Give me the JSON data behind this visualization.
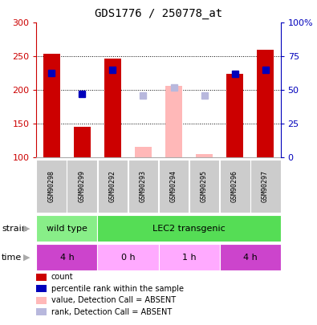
{
  "title": "GDS1776 / 250778_at",
  "samples": [
    "GSM90298",
    "GSM90299",
    "GSM90292",
    "GSM90293",
    "GSM90294",
    "GSM90295",
    "GSM90296",
    "GSM90297"
  ],
  "ylim_left": [
    100,
    300
  ],
  "ylim_right": [
    0,
    100
  ],
  "yticks_left": [
    100,
    150,
    200,
    250,
    300
  ],
  "ytick_labels_left": [
    "100",
    "150",
    "200",
    "250",
    "300"
  ],
  "yticks_right": [
    0,
    25,
    50,
    75,
    100
  ],
  "ytick_labels_right": [
    "0",
    "25",
    "50",
    "75",
    "100%"
  ],
  "counts": [
    254,
    146,
    247,
    null,
    null,
    null,
    224,
    260
  ],
  "percentile_ranks": [
    63,
    47,
    65,
    null,
    null,
    null,
    62,
    65
  ],
  "absent_values": [
    null,
    null,
    null,
    116,
    207,
    105,
    null,
    null
  ],
  "absent_ranks": [
    null,
    null,
    null,
    46,
    52,
    46,
    null,
    null
  ],
  "bar_width": 0.55,
  "count_color": "#cc0000",
  "rank_color": "#0000bb",
  "absent_count_color": "#ffb8b8",
  "absent_rank_color": "#b8b8dd",
  "grid_dotted_color": "#000000",
  "strain_groups": [
    {
      "label": "wild type",
      "start": 0,
      "end": 2,
      "color": "#88ee88"
    },
    {
      "label": "LEC2 transgenic",
      "start": 2,
      "end": 8,
      "color": "#55dd55"
    }
  ],
  "time_groups": [
    {
      "label": "4 h",
      "start": 0,
      "end": 2,
      "color": "#cc44cc"
    },
    {
      "label": "0 h",
      "start": 2,
      "end": 4,
      "color": "#ffaaff"
    },
    {
      "label": "1 h",
      "start": 4,
      "end": 6,
      "color": "#ffaaff"
    },
    {
      "label": "4 h",
      "start": 6,
      "end": 8,
      "color": "#cc44cc"
    }
  ],
  "legend_items": [
    {
      "label": "count",
      "color": "#cc0000"
    },
    {
      "label": "percentile rank within the sample",
      "color": "#0000bb"
    },
    {
      "label": "value, Detection Call = ABSENT",
      "color": "#ffb8b8"
    },
    {
      "label": "rank, Detection Call = ABSENT",
      "color": "#b8b8dd"
    }
  ],
  "left_axis_color": "#cc0000",
  "right_axis_color": "#0000bb",
  "sample_box_color": "#cccccc",
  "background_color": "#ffffff"
}
